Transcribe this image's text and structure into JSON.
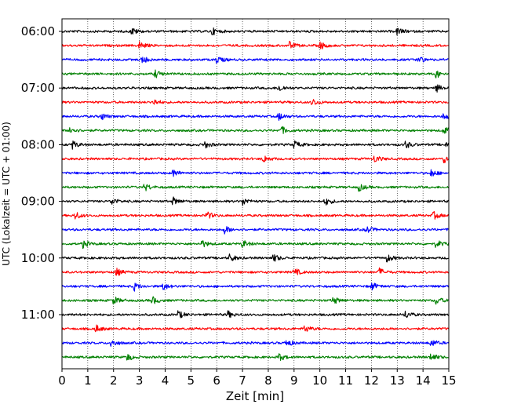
{
  "chart_data": {
    "type": "line",
    "subtype": "helicorder seismogram",
    "xlabel": "Zeit  [min]",
    "ylabel": "UTC (Lokalzeit = UTC + 01:00)",
    "xlim": [
      0,
      15
    ],
    "xticks": [
      0,
      1,
      2,
      3,
      4,
      5,
      6,
      7,
      8,
      9,
      10,
      11,
      12,
      13,
      14,
      15
    ],
    "xtick_labels": [
      "0",
      "1",
      "2",
      "3",
      "4",
      "5",
      "6",
      "7",
      "8",
      "9",
      "10",
      "11",
      "12",
      "13",
      "14",
      "15"
    ],
    "ytick_labels": [
      {
        "label": "06:00",
        "trace_index": 0
      },
      {
        "label": "07:00",
        "trace_index": 4
      },
      {
        "label": "08:00",
        "trace_index": 8
      },
      {
        "label": "09:00",
        "trace_index": 12
      },
      {
        "label": "10:00",
        "trace_index": 16
      },
      {
        "label": "11:00",
        "trace_index": 20
      }
    ],
    "grid": {
      "x": true,
      "y": false,
      "style": "dotted"
    },
    "trace_colors": [
      "#000000",
      "#ff0000",
      "#0000ff",
      "#008000"
    ],
    "traces": [
      {
        "start": "06:00",
        "color": "#000000",
        "events": [
          2.7,
          5.8,
          13.0
        ]
      },
      {
        "start": "06:15",
        "color": "#ff0000",
        "events": [
          3.0,
          8.8,
          10.0
        ]
      },
      {
        "start": "06:30",
        "color": "#0000ff",
        "events": [
          3.1,
          6.0,
          13.8
        ]
      },
      {
        "start": "06:45",
        "color": "#008000",
        "events": [
          3.6,
          14.5
        ]
      },
      {
        "start": "07:00",
        "color": "#000000",
        "events": [
          8.4,
          14.5
        ]
      },
      {
        "start": "07:15",
        "color": "#ff0000",
        "events": [
          3.5,
          9.7
        ]
      },
      {
        "start": "07:30",
        "color": "#0000ff",
        "events": [
          1.5,
          8.4,
          14.8
        ]
      },
      {
        "start": "07:45",
        "color": "#008000",
        "events": [
          0.3,
          8.5,
          14.8
        ]
      },
      {
        "start": "08:00",
        "color": "#000000",
        "events": [
          0.4,
          5.5,
          9.0,
          13.3,
          14.9
        ]
      },
      {
        "start": "08:15",
        "color": "#ff0000",
        "events": [
          7.8,
          12.1,
          14.8
        ]
      },
      {
        "start": "08:30",
        "color": "#0000ff",
        "events": [
          4.3,
          14.3
        ]
      },
      {
        "start": "08:45",
        "color": "#008000",
        "events": [
          3.2,
          11.5
        ]
      },
      {
        "start": "09:00",
        "color": "#000000",
        "events": [
          1.9,
          4.3,
          7.0,
          10.2
        ]
      },
      {
        "start": "09:15",
        "color": "#ff0000",
        "events": [
          0.5,
          5.6,
          14.4
        ]
      },
      {
        "start": "09:30",
        "color": "#0000ff",
        "events": [
          6.3,
          11.8
        ]
      },
      {
        "start": "09:45",
        "color": "#008000",
        "events": [
          0.8,
          5.4,
          7.0,
          14.5
        ]
      },
      {
        "start": "10:00",
        "color": "#000000",
        "events": [
          6.5,
          8.2,
          12.6
        ]
      },
      {
        "start": "10:15",
        "color": "#ff0000",
        "events": [
          2.1,
          9.0,
          12.3
        ]
      },
      {
        "start": "10:30",
        "color": "#0000ff",
        "events": [
          2.8,
          3.9,
          12.0
        ]
      },
      {
        "start": "10:45",
        "color": "#008000",
        "events": [
          2.0,
          3.5,
          10.5,
          14.5
        ]
      },
      {
        "start": "11:00",
        "color": "#000000",
        "events": [
          4.5,
          6.4,
          13.3
        ]
      },
      {
        "start": "11:15",
        "color": "#ff0000",
        "events": [
          1.3,
          9.4
        ]
      },
      {
        "start": "11:30",
        "color": "#0000ff",
        "events": [
          1.9,
          8.7,
          14.3
        ]
      },
      {
        "start": "11:45",
        "color": "#008000",
        "events": [
          2.5,
          8.4,
          14.3
        ]
      }
    ]
  }
}
